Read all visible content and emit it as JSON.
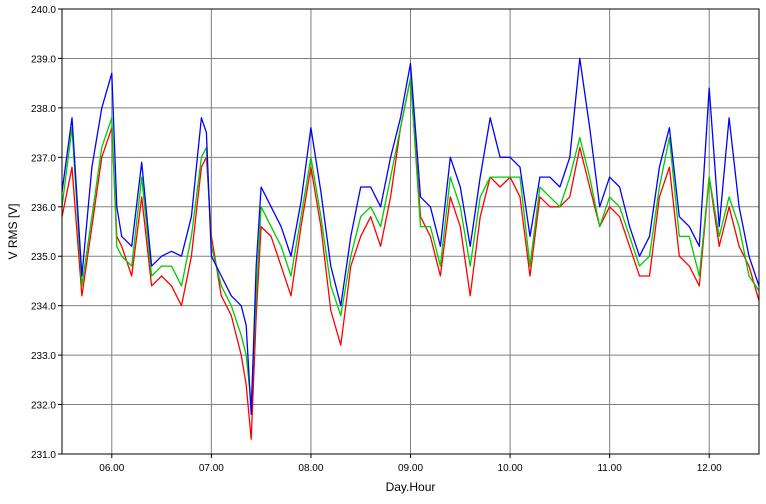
{
  "chart_data": {
    "type": "line",
    "title": "",
    "xlabel": "Day.Hour",
    "ylabel": "V RMS [V]",
    "xlim": [
      5.5,
      12.5
    ],
    "ylim": [
      231.0,
      240.0
    ],
    "x_ticks": [
      6,
      7,
      8,
      9,
      10,
      11,
      12
    ],
    "x_tick_labels": [
      "06.00",
      "07.00",
      "08.00",
      "09.00",
      "10.00",
      "11.00",
      "12.00"
    ],
    "y_ticks": [
      231,
      232,
      233,
      234,
      235,
      236,
      237,
      238,
      239,
      240
    ],
    "y_tick_labels": [
      "231.0",
      "232.0",
      "233.0",
      "234.0",
      "235.0",
      "236.0",
      "237.0",
      "238.0",
      "239.0",
      "240.0"
    ],
    "grid": true,
    "legend": "none",
    "colors": {
      "phase_1": "#ff0000",
      "phase_2": "#00cc00",
      "phase_3": "#0000ff",
      "grid": "#808080",
      "axis": "#000000"
    },
    "x": [
      5.5,
      5.6,
      5.7,
      5.8,
      5.9,
      6.0,
      6.05,
      6.1,
      6.2,
      6.3,
      6.4,
      6.5,
      6.6,
      6.7,
      6.8,
      6.9,
      6.95,
      7.0,
      7.1,
      7.2,
      7.3,
      7.35,
      7.4,
      7.45,
      7.5,
      7.6,
      7.7,
      7.8,
      7.9,
      8.0,
      8.1,
      8.2,
      8.3,
      8.4,
      8.5,
      8.6,
      8.7,
      8.8,
      8.9,
      9.0,
      9.1,
      9.2,
      9.3,
      9.4,
      9.5,
      9.6,
      9.7,
      9.8,
      9.9,
      10.0,
      10.1,
      10.2,
      10.3,
      10.4,
      10.5,
      10.6,
      10.7,
      10.8,
      10.9,
      11.0,
      11.1,
      11.2,
      11.3,
      11.4,
      11.5,
      11.6,
      11.7,
      11.8,
      11.9,
      12.0,
      12.1,
      12.2,
      12.3,
      12.4,
      12.5
    ],
    "series": [
      {
        "values": [
          235.8,
          236.8,
          234.2,
          235.6,
          237.0,
          237.6,
          235.4,
          235.2,
          234.6,
          236.2,
          234.4,
          234.6,
          234.4,
          234.0,
          235.0,
          236.8,
          237.0,
          235.4,
          234.2,
          233.8,
          233.0,
          232.4,
          231.3,
          233.8,
          235.6,
          235.4,
          234.8,
          234.2,
          235.6,
          236.8,
          235.6,
          233.9,
          233.2,
          234.8,
          235.4,
          235.8,
          235.2,
          236.2,
          237.6,
          238.6,
          235.8,
          235.4,
          234.6,
          236.2,
          235.6,
          234.2,
          235.8,
          236.6,
          236.4,
          236.6,
          236.2,
          234.6,
          236.2,
          236.0,
          236.0,
          236.2,
          237.2,
          236.4,
          235.6,
          236.0,
          235.8,
          235.2,
          234.6,
          234.6,
          236.2,
          236.8,
          235.0,
          234.8,
          234.4,
          236.6,
          235.2,
          236.0,
          235.2,
          234.8,
          234.1
        ]
      },
      {
        "values": [
          236.0,
          237.6,
          234.4,
          235.8,
          237.2,
          237.8,
          235.2,
          235.0,
          234.8,
          236.6,
          234.6,
          234.8,
          234.8,
          234.4,
          235.4,
          237.0,
          237.2,
          235.2,
          234.4,
          234.0,
          233.4,
          233.0,
          232.0,
          234.2,
          236.0,
          235.6,
          235.2,
          234.6,
          235.8,
          237.0,
          235.8,
          234.4,
          233.8,
          235.0,
          235.8,
          236.0,
          235.6,
          236.6,
          237.6,
          238.6,
          235.6,
          235.6,
          234.8,
          236.6,
          236.0,
          234.8,
          236.2,
          236.6,
          236.6,
          236.6,
          236.6,
          234.8,
          236.4,
          236.2,
          236.0,
          236.6,
          237.4,
          236.6,
          235.6,
          236.2,
          236.0,
          235.4,
          234.8,
          235.0,
          236.4,
          237.4,
          235.4,
          235.4,
          234.6,
          236.6,
          235.4,
          236.2,
          235.6,
          234.6,
          234.3
        ]
      },
      {
        "values": [
          236.3,
          237.8,
          234.6,
          236.8,
          238.0,
          238.7,
          236.0,
          235.4,
          235.2,
          236.9,
          234.8,
          235.0,
          235.1,
          235.0,
          235.8,
          237.8,
          237.5,
          235.0,
          234.6,
          234.2,
          234.0,
          233.6,
          231.8,
          234.8,
          236.4,
          236.0,
          235.6,
          235.0,
          236.1,
          237.6,
          236.3,
          234.8,
          234.0,
          235.4,
          236.4,
          236.4,
          236.0,
          237.0,
          237.8,
          238.9,
          236.2,
          236.0,
          235.2,
          237.0,
          236.4,
          235.2,
          236.6,
          237.8,
          237.0,
          237.0,
          236.8,
          235.4,
          236.6,
          236.6,
          236.4,
          237.0,
          239.0,
          237.6,
          236.0,
          236.6,
          236.4,
          235.6,
          235.0,
          235.4,
          236.8,
          237.6,
          235.8,
          235.6,
          235.2,
          238.4,
          235.6,
          237.8,
          236.0,
          235.0,
          234.4
        ]
      }
    ]
  }
}
